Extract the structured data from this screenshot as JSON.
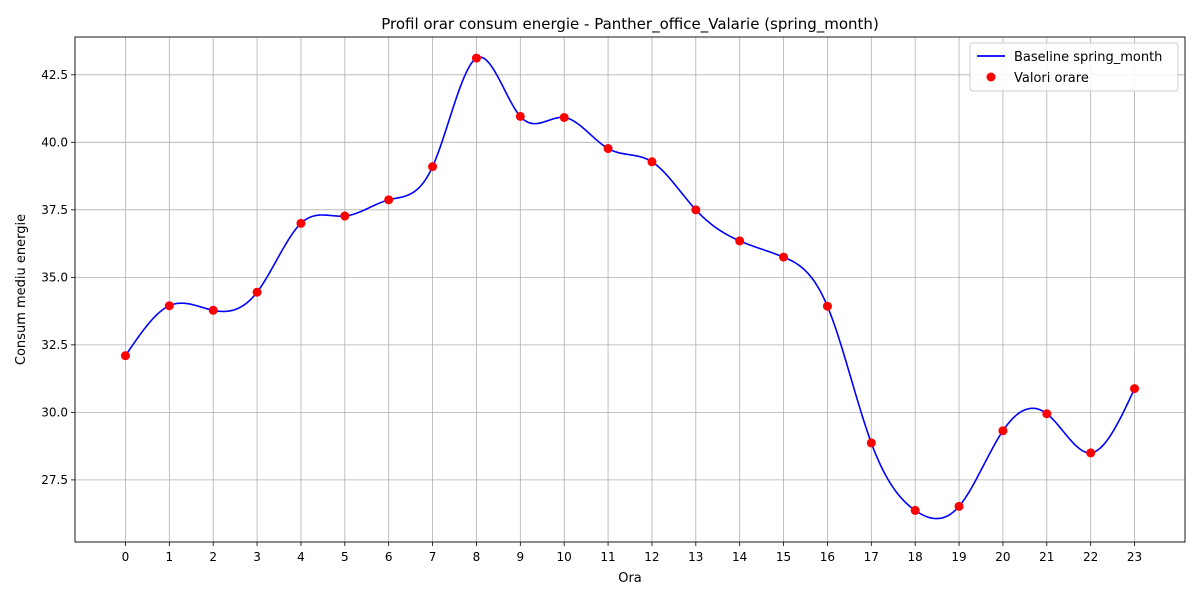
{
  "chart_data": {
    "type": "line",
    "title": "Profil orar consum energie - Panther_office_Valarie (spring_month)",
    "xlabel": "Ora",
    "ylabel": "Consum mediu energie",
    "x": [
      0,
      1,
      2,
      3,
      4,
      5,
      6,
      7,
      8,
      9,
      10,
      11,
      12,
      13,
      14,
      15,
      16,
      17,
      18,
      19,
      20,
      21,
      22,
      23
    ],
    "y_ticks": [
      27.5,
      30.0,
      32.5,
      35.0,
      37.5,
      40.0,
      42.5
    ],
    "y_tick_labels": [
      "27.5",
      "30.0",
      "32.5",
      "35.0",
      "37.5",
      "40.0",
      "42.5"
    ],
    "xlim": [
      -1.15,
      24.15
    ],
    "ylim": [
      25.2,
      43.9
    ],
    "grid": true,
    "legend_position": "top-right",
    "series": [
      {
        "name": "Baseline spring_month",
        "kind": "smooth-line",
        "color": "#0000ff",
        "values": [
          32.1,
          33.95,
          33.78,
          34.45,
          37.0,
          37.27,
          37.87,
          39.1,
          43.12,
          40.96,
          40.92,
          39.77,
          39.28,
          37.5,
          36.35,
          35.75,
          33.93,
          28.87,
          26.37,
          26.52,
          29.32,
          29.95,
          28.5,
          30.88
        ]
      },
      {
        "name": "Valori orare",
        "kind": "scatter",
        "color": "#ff0000",
        "values": [
          32.1,
          33.95,
          33.78,
          34.45,
          37.0,
          37.27,
          37.87,
          39.1,
          43.12,
          40.96,
          40.92,
          39.77,
          39.28,
          37.5,
          36.35,
          35.75,
          33.93,
          28.87,
          26.37,
          26.52,
          29.32,
          29.95,
          28.5,
          30.88
        ]
      }
    ]
  }
}
